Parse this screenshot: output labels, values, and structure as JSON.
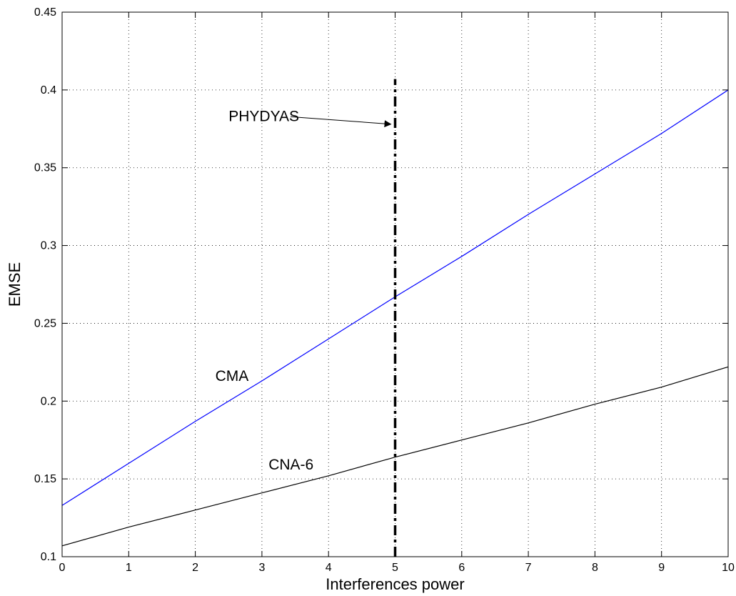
{
  "chart_data": {
    "type": "line",
    "xlabel": "Interferences power",
    "ylabel": "EMSE",
    "xlim": [
      0,
      10
    ],
    "ylim": [
      0.1,
      0.45
    ],
    "xticks": [
      "0",
      "1",
      "2",
      "3",
      "4",
      "5",
      "6",
      "7",
      "8",
      "9",
      "10"
    ],
    "yticks": [
      "0.1",
      "0.15",
      "0.2",
      "0.25",
      "0.3",
      "0.35",
      "0.4",
      "0.45"
    ],
    "grid": true,
    "series": [
      {
        "name": "CMA",
        "color": "#0000ff",
        "x": [
          0,
          1,
          2,
          3,
          4,
          5,
          6,
          7,
          8,
          9,
          10
        ],
        "y": [
          0.133,
          0.16,
          0.187,
          0.213,
          0.24,
          0.267,
          0.293,
          0.32,
          0.346,
          0.372,
          0.4
        ]
      },
      {
        "name": "CNA-6",
        "color": "#000000",
        "x": [
          0,
          1,
          2,
          3,
          4,
          5,
          6,
          7,
          8,
          9,
          10
        ],
        "y": [
          0.107,
          0.119,
          0.13,
          0.141,
          0.152,
          0.164,
          0.175,
          0.186,
          0.198,
          0.209,
          0.222
        ]
      }
    ],
    "vline": {
      "x": 5,
      "y_top": 0.407,
      "style": "dashed",
      "color": "#000000"
    },
    "annotations": [
      {
        "text": "CMA",
        "x": 2.3,
        "y": 0.213
      },
      {
        "text": "CNA-6",
        "x": 3.1,
        "y": 0.156
      },
      {
        "text": "PHYDYAS",
        "x": 2.5,
        "y": 0.38,
        "arrow_to": {
          "x": 5.0,
          "y": 0.378
        }
      }
    ]
  }
}
